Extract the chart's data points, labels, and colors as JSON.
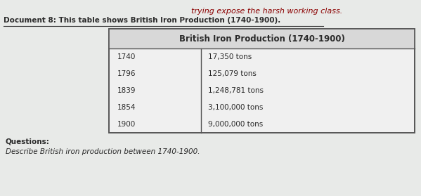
{
  "top_text_italic": "trying expose the harsh working class.",
  "top_text_italic_color": "#8b0000",
  "doc_label": "Document 8: This table shows British Iron Production (1740-1900).",
  "table_title": "British Iron Production (1740-1900)",
  "years": [
    "1740",
    "1796",
    "1839",
    "1854",
    "1900"
  ],
  "productions": [
    "17,350 tons",
    "125,079 tons",
    "1,248,781 tons",
    "3,100,000 tons",
    "9,000,000 tons"
  ],
  "questions_label": "Questions:",
  "question_text": "Describe British iron production between 1740-1900.",
  "bg_color": "#e8eae8",
  "table_bg": "#f0f0f0",
  "title_bg": "#d8d8d8",
  "text_color": "#2a2a2a",
  "border_color": "#555555"
}
